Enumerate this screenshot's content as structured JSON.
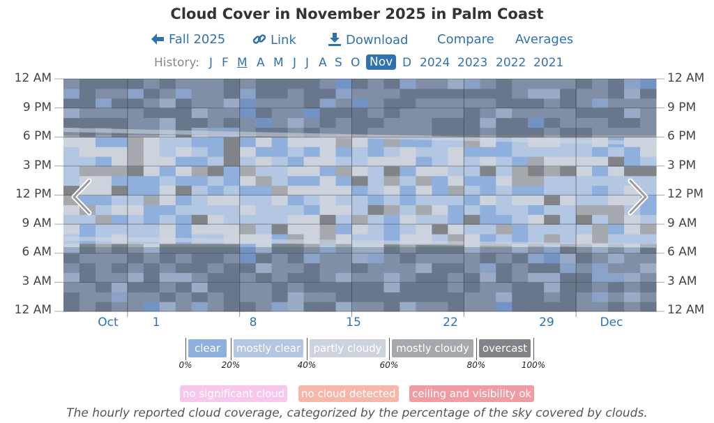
{
  "title": "Cloud Cover in November 2025 in Palm Coast",
  "nav": {
    "season": "Fall 2025",
    "link": "Link",
    "download": "Download",
    "compare": "Compare",
    "averages": "Averages"
  },
  "history": {
    "label": "History:",
    "months": [
      "J",
      "F",
      "M",
      "A",
      "M",
      "J",
      "J",
      "A",
      "S",
      "O",
      "Nov",
      "D"
    ],
    "active_month": "Nov",
    "years": [
      "2024",
      "2023",
      "2022",
      "2021"
    ]
  },
  "chart_data": {
    "type": "heatmap",
    "title": "Cloud Cover in November 2025 in Palm Coast",
    "x_axis": "date",
    "x_range": [
      "2025-10-28",
      "2025-12-04"
    ],
    "x_ticks": [
      "Oct",
      "1",
      "8",
      "15",
      "22",
      "29",
      "Dec"
    ],
    "y_range": [
      "12 AM",
      "12 AM"
    ],
    "y_ticks": [
      "12 AM",
      "3 AM",
      "6 AM",
      "9 AM",
      "12 PM",
      "3 PM",
      "6 PM",
      "9 PM",
      "12 AM"
    ],
    "categories": [
      "clear",
      "mostly clear",
      "partly cloudy",
      "mostly cloudy",
      "overcast"
    ],
    "thresholds_percent": [
      "0%",
      "20%",
      "40%",
      "60%",
      "80%",
      "100%"
    ],
    "colors": {
      "clear": "#8fb0dc",
      "mostly_clear": "#b3c6e2",
      "partly_cloudy": "#cdd3dd",
      "mostly_cloudy": "#a5a9ae",
      "overcast": "#808488",
      "no_significant_cloud": "#f7c8ec",
      "no_cloud_detected": "#f6b7aa",
      "ceiling_ok": "#f19ca3"
    },
    "flags": [
      "no significant cloud",
      "no cloud detected",
      "ceiling and visibility ok"
    ],
    "grid": true
  },
  "caption": "The hourly reported cloud coverage, categorized by the percentage of the sky covered by clouds."
}
